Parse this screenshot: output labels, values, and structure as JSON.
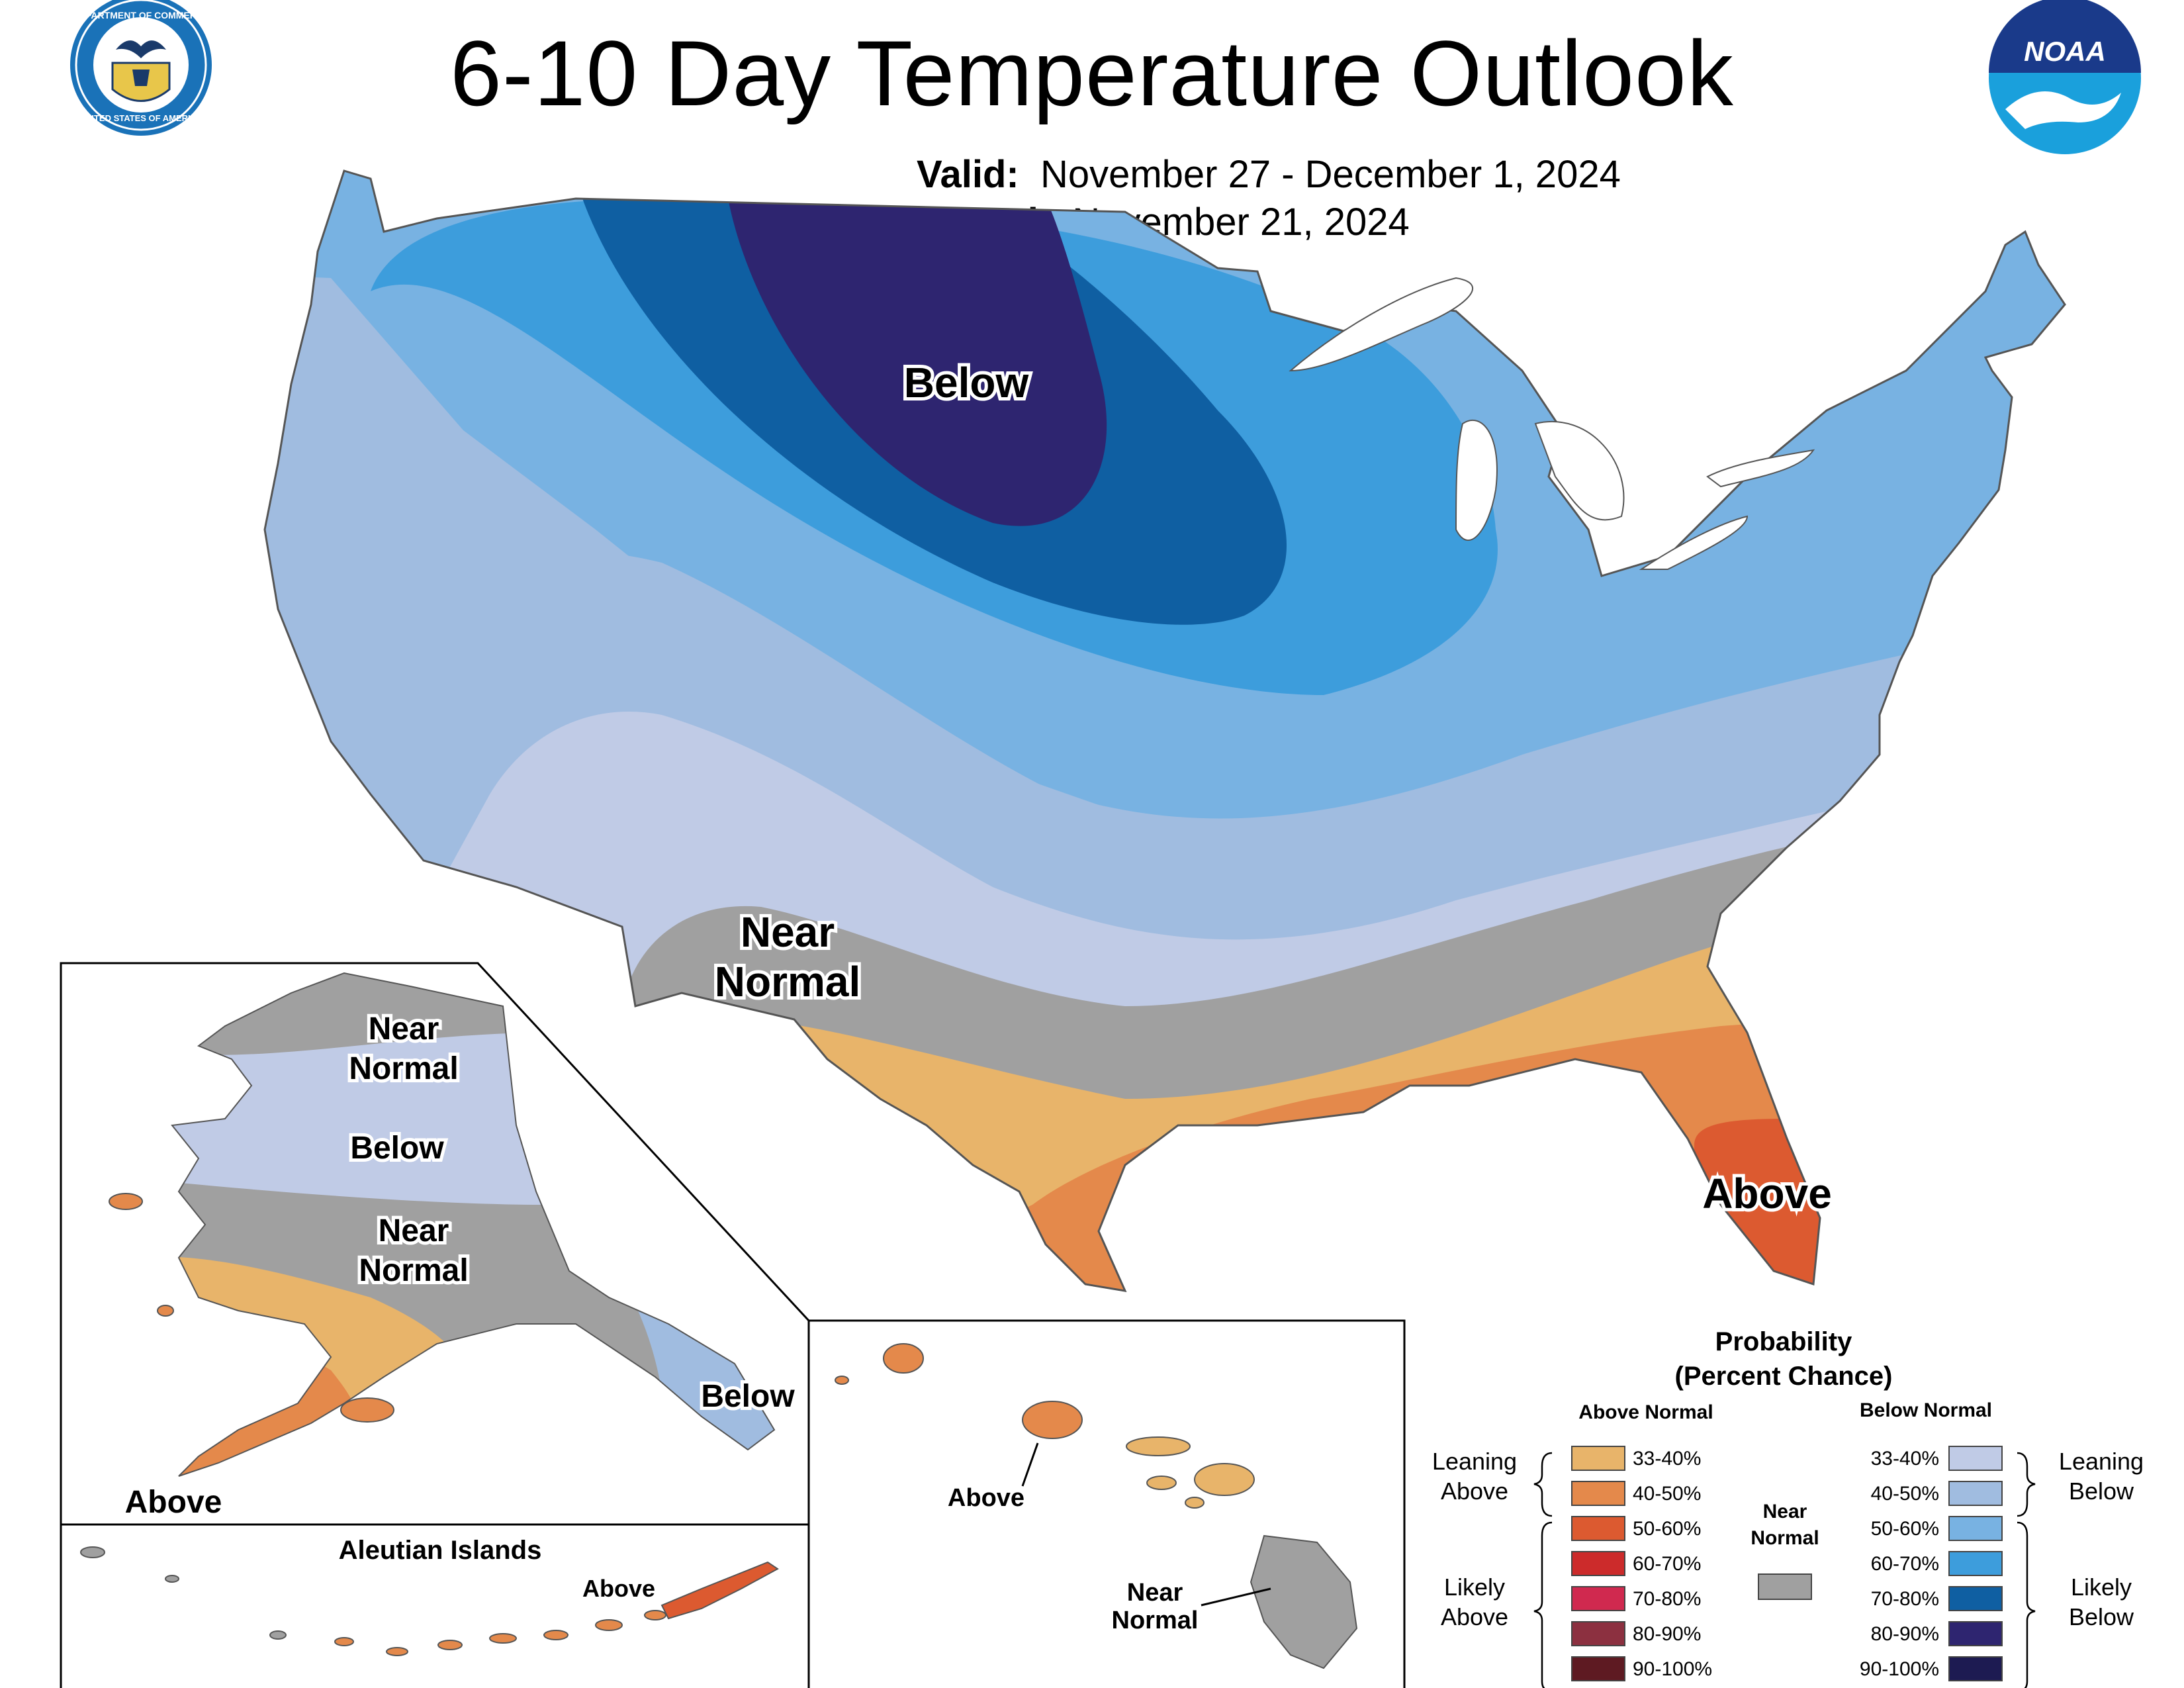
{
  "header": {
    "title": "6-10 Day Temperature Outlook",
    "valid_label": "Valid:",
    "valid_value": "November 27 - December 1, 2024",
    "issued_label": "Issued:",
    "issued_value": "November 21, 2024",
    "left_logo": "department-of-commerce-seal",
    "left_logo_text_top": "DEPARTMENT OF COMMERCE",
    "left_logo_text_bottom": "UNITED STATES OF AMERICA",
    "right_logo": "noaa-logo",
    "right_logo_text": "NOAA"
  },
  "map_labels": {
    "conus_below": "Below",
    "conus_near_line1": "Near",
    "conus_near_line2": "Normal",
    "conus_above": "Above",
    "ak_near1_line1": "Near",
    "ak_near1_line2": "Normal",
    "ak_below": "Below",
    "ak_near2_line1": "Near",
    "ak_near2_line2": "Normal",
    "ak_panhandle_below": "Below",
    "ak_above": "Above",
    "aleutian_title": "Aleutian Islands",
    "aleutian_above": "Above",
    "hi_above": "Above",
    "hi_near_line1": "Near",
    "hi_near_line2": "Normal"
  },
  "legend": {
    "title_line1": "Probability",
    "title_line2": "(Percent Chance)",
    "above_header": "Above Normal",
    "below_header": "Below Normal",
    "near_line1": "Near",
    "near_line2": "Normal",
    "leaning_above_1": "Leaning",
    "leaning_above_2": "Above",
    "likely_above_1": "Likely",
    "likely_above_2": "Above",
    "leaning_below_1": "Leaning",
    "leaning_below_2": "Below",
    "likely_below_1": "Likely",
    "likely_below_2": "Below",
    "above_items": [
      {
        "label": "33-40%",
        "color": "#e8b46a"
      },
      {
        "label": "40-50%",
        "color": "#e4894b"
      },
      {
        "label": "50-60%",
        "color": "#dc5a30"
      },
      {
        "label": "60-70%",
        "color": "#cc2b2b"
      },
      {
        "label": "70-80%",
        "color": "#d0294f"
      },
      {
        "label": "80-90%",
        "color": "#8c3040"
      },
      {
        "label": "90-100%",
        "color": "#5e1a22"
      }
    ],
    "below_items": [
      {
        "label": "33-40%",
        "color": "#c0cbe6"
      },
      {
        "label": "40-50%",
        "color": "#a0bce0"
      },
      {
        "label": "50-60%",
        "color": "#78b2e2"
      },
      {
        "label": "60-70%",
        "color": "#3d9ddc"
      },
      {
        "label": "70-80%",
        "color": "#0f5fa2"
      },
      {
        "label": "80-90%",
        "color": "#2e2570"
      },
      {
        "label": "90-100%",
        "color": "#1d1b52"
      }
    ],
    "near_color": "#a0a0a0"
  }
}
